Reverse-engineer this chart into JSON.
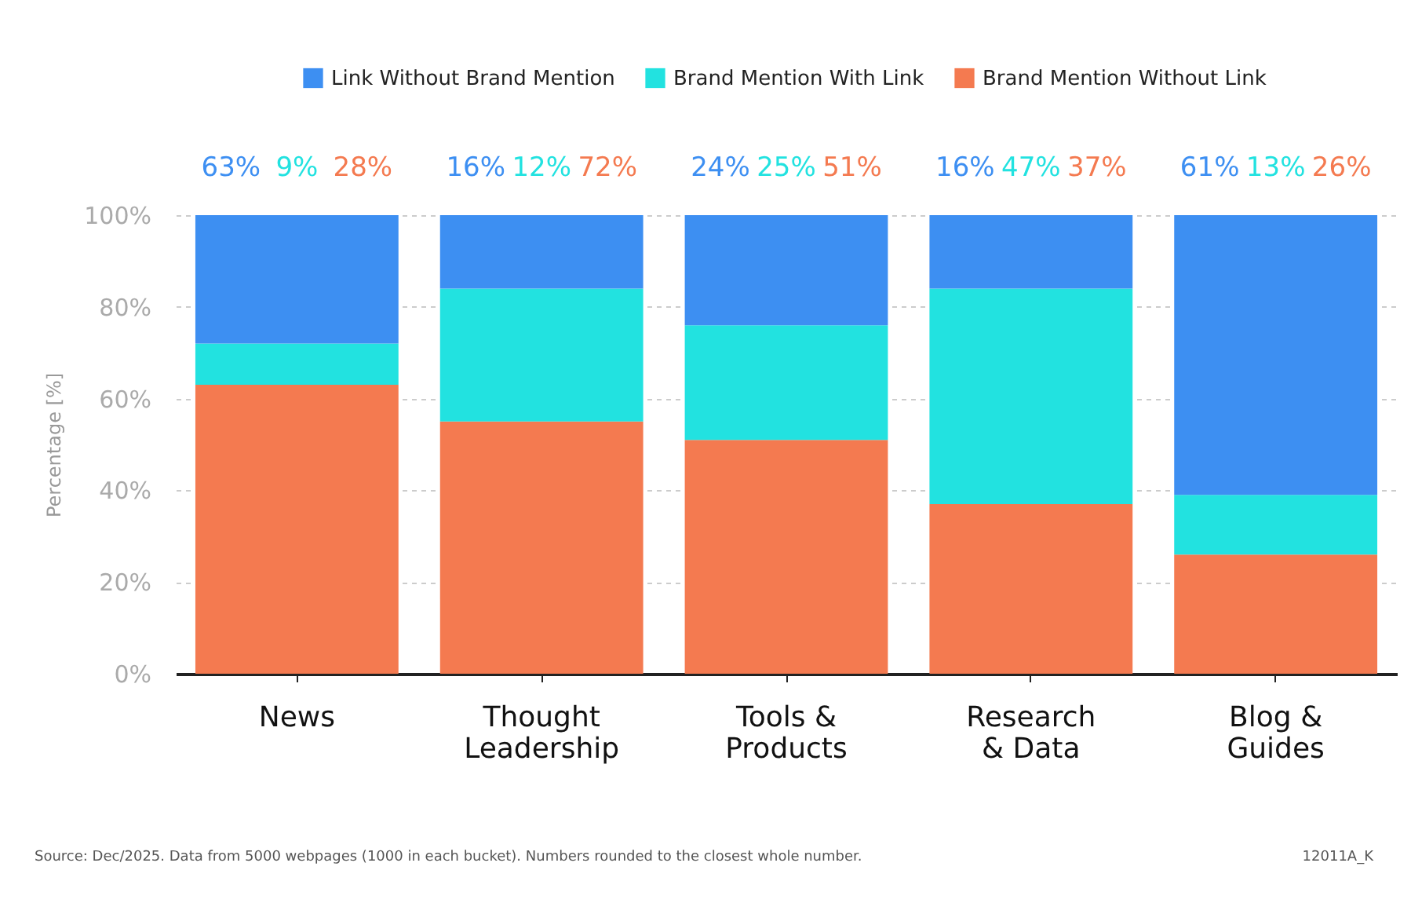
{
  "chart_data": {
    "type": "bar",
    "stacked": true,
    "categories": [
      "News",
      "Thought Leadership",
      "Tools & Products",
      "Research & Data",
      "Blog & Guides"
    ],
    "series": [
      {
        "name": "Brand Mention Without Link",
        "color": "#f47a50",
        "values": [
          63,
          55,
          51,
          37,
          26
        ]
      },
      {
        "name": "Brand Mention With Link",
        "color": "#22e2e0",
        "values": [
          9,
          29,
          25,
          47,
          13
        ]
      },
      {
        "name": "Link Without Brand Mention",
        "color": "#3d8ff2",
        "values": [
          28,
          16,
          24,
          16,
          61
        ]
      }
    ],
    "ylabel": "Percentage [%]",
    "ylim": [
      0,
      100
    ],
    "yticks": [
      {
        "value": 0,
        "label": "0%"
      },
      {
        "value": 20,
        "label": "20%"
      },
      {
        "value": 40,
        "label": "40%"
      },
      {
        "value": 60,
        "label": "60%"
      },
      {
        "value": 80,
        "label": "80%"
      },
      {
        "value": 100,
        "label": "100%"
      }
    ],
    "grid": "y",
    "legend": "top",
    "annotations": [
      "63%",
      "9%",
      "28%",
      "16%",
      "12%",
      "72%",
      "24%",
      "25%",
      "51%",
      "16%",
      "47%",
      "37%",
      "61%",
      "13%",
      "26%",
      "Source: Dec/2025. Data from 5000 webpages (1000 in each bucket). Numbers rounded to the closest whole number.",
      "12011A_K"
    ]
  }
}
